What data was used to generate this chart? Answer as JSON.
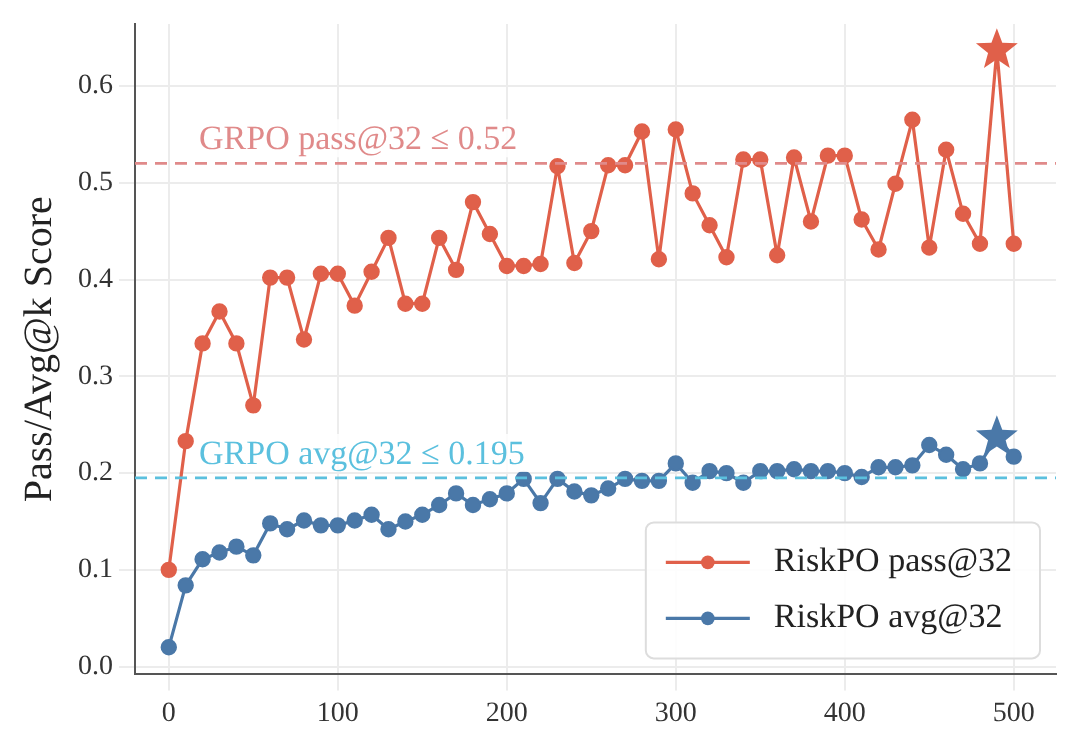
{
  "chart_data": {
    "type": "line",
    "ylabel": "Pass/Avg@k Score",
    "x": [
      0,
      10,
      20,
      30,
      40,
      50,
      60,
      70,
      80,
      90,
      100,
      110,
      120,
      130,
      140,
      150,
      160,
      170,
      180,
      190,
      200,
      210,
      220,
      230,
      240,
      250,
      260,
      270,
      280,
      290,
      300,
      310,
      320,
      330,
      340,
      350,
      360,
      370,
      380,
      390,
      400,
      410,
      420,
      430,
      440,
      450,
      460,
      470,
      480,
      490,
      500
    ],
    "series": [
      {
        "name": "RiskPO pass@32",
        "color": "#e0604a",
        "values": [
          0.1,
          0.233,
          0.334,
          0.367,
          0.334,
          0.27,
          0.402,
          0.402,
          0.338,
          0.406,
          0.406,
          0.373,
          0.408,
          0.443,
          0.375,
          0.375,
          0.443,
          0.41,
          0.48,
          0.447,
          0.414,
          0.414,
          0.416,
          0.517,
          0.417,
          0.45,
          0.518,
          0.518,
          0.553,
          0.421,
          0.555,
          0.489,
          0.456,
          0.423,
          0.524,
          0.524,
          0.425,
          0.526,
          0.46,
          0.528,
          0.528,
          0.462,
          0.431,
          0.499,
          0.565,
          0.433,
          0.534,
          0.468,
          0.437,
          0.637,
          0.437
        ]
      },
      {
        "name": "RiskPO avg@32",
        "color": "#4a78a8",
        "values": [
          0.02,
          0.084,
          0.111,
          0.118,
          0.124,
          0.115,
          0.148,
          0.142,
          0.151,
          0.146,
          0.146,
          0.151,
          0.157,
          0.142,
          0.15,
          0.157,
          0.167,
          0.179,
          0.167,
          0.173,
          0.179,
          0.194,
          0.169,
          0.194,
          0.181,
          0.177,
          0.184,
          0.194,
          0.192,
          0.192,
          0.21,
          0.19,
          0.202,
          0.2,
          0.19,
          0.202,
          0.202,
          0.204,
          0.202,
          0.202,
          0.2,
          0.196,
          0.206,
          0.206,
          0.208,
          0.229,
          0.219,
          0.204,
          0.21,
          0.237,
          0.217
        ]
      },
      {
        "type": "scatter",
        "marker": "star",
        "color": "#e0604a",
        "x": [
          490
        ],
        "values": [
          0.637
        ]
      },
      {
        "type": "scatter",
        "marker": "star",
        "color": "#4a78a8",
        "x": [
          490
        ],
        "values": [
          0.237
        ]
      }
    ],
    "marker": "circle",
    "line_style": "solid",
    "xlim": [
      -20,
      525
    ],
    "xticks": [
      0,
      100,
      200,
      300,
      400,
      500
    ],
    "ylim": [
      -0.008,
      0.664
    ],
    "yticks": [
      {
        "value": 0,
        "label": "0.0"
      },
      {
        "value": 0.1,
        "label": "0.1"
      },
      {
        "value": 0.2,
        "label": "0.2"
      },
      {
        "value": 0.3,
        "label": "0.3"
      },
      {
        "value": 0.4,
        "label": "0.4"
      },
      {
        "value": 0.5,
        "label": "0.5"
      },
      {
        "value": 0.6,
        "label": "0.6"
      }
    ],
    "ref_lines": [
      {
        "axis": "y",
        "value": 0.52,
        "label": "GRPO pass@32 ≤ 0.52",
        "color": "#e08a8a",
        "line_style": "dashed"
      },
      {
        "axis": "y",
        "value": 0.195,
        "label": "GRPO avg@32 ≤ 0.195",
        "color": "#5bc0de",
        "line_style": "dashed"
      }
    ],
    "grid": true,
    "legend": "bottom right"
  }
}
